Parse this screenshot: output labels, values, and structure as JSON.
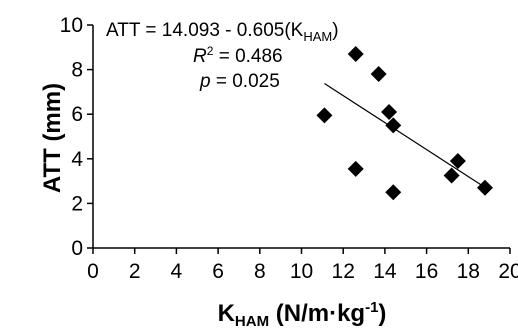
{
  "chart_data": {
    "type": "scatter",
    "xlabel": "K",
    "xlabel_sub": "HAM",
    "xlabel_rest": " (N/m·kg",
    "xlabel_sup": "-1",
    "xlabel_close": ")",
    "ylabel": "ATT (mm)",
    "xlim": [
      0,
      20
    ],
    "ylim": [
      0,
      10
    ],
    "xticks": [
      0,
      2,
      4,
      6,
      8,
      10,
      12,
      14,
      16,
      18,
      20
    ],
    "yticks": [
      0,
      2,
      4,
      6,
      8,
      10
    ],
    "grid": false,
    "points": [
      {
        "x": 11.1,
        "y": 5.95
      },
      {
        "x": 12.6,
        "y": 8.7
      },
      {
        "x": 12.6,
        "y": 3.55
      },
      {
        "x": 13.7,
        "y": 7.8
      },
      {
        "x": 14.2,
        "y": 6.1
      },
      {
        "x": 14.4,
        "y": 5.5
      },
      {
        "x": 14.4,
        "y": 2.5
      },
      {
        "x": 17.2,
        "y": 3.25
      },
      {
        "x": 17.5,
        "y": 3.9
      },
      {
        "x": 18.8,
        "y": 2.7
      }
    ],
    "trendline": {
      "x": [
        11.1,
        18.8
      ]
    },
    "annotations": {
      "equation_prefix": "ATT = 14.093 - 0.605(K",
      "equation_sub": "HAM",
      "equation_suffix": ")",
      "r2_label": "R",
      "r2_sup": "2",
      "r2_value": " = 0.486",
      "p_label": "p",
      "p_value": " = 0.025"
    }
  }
}
